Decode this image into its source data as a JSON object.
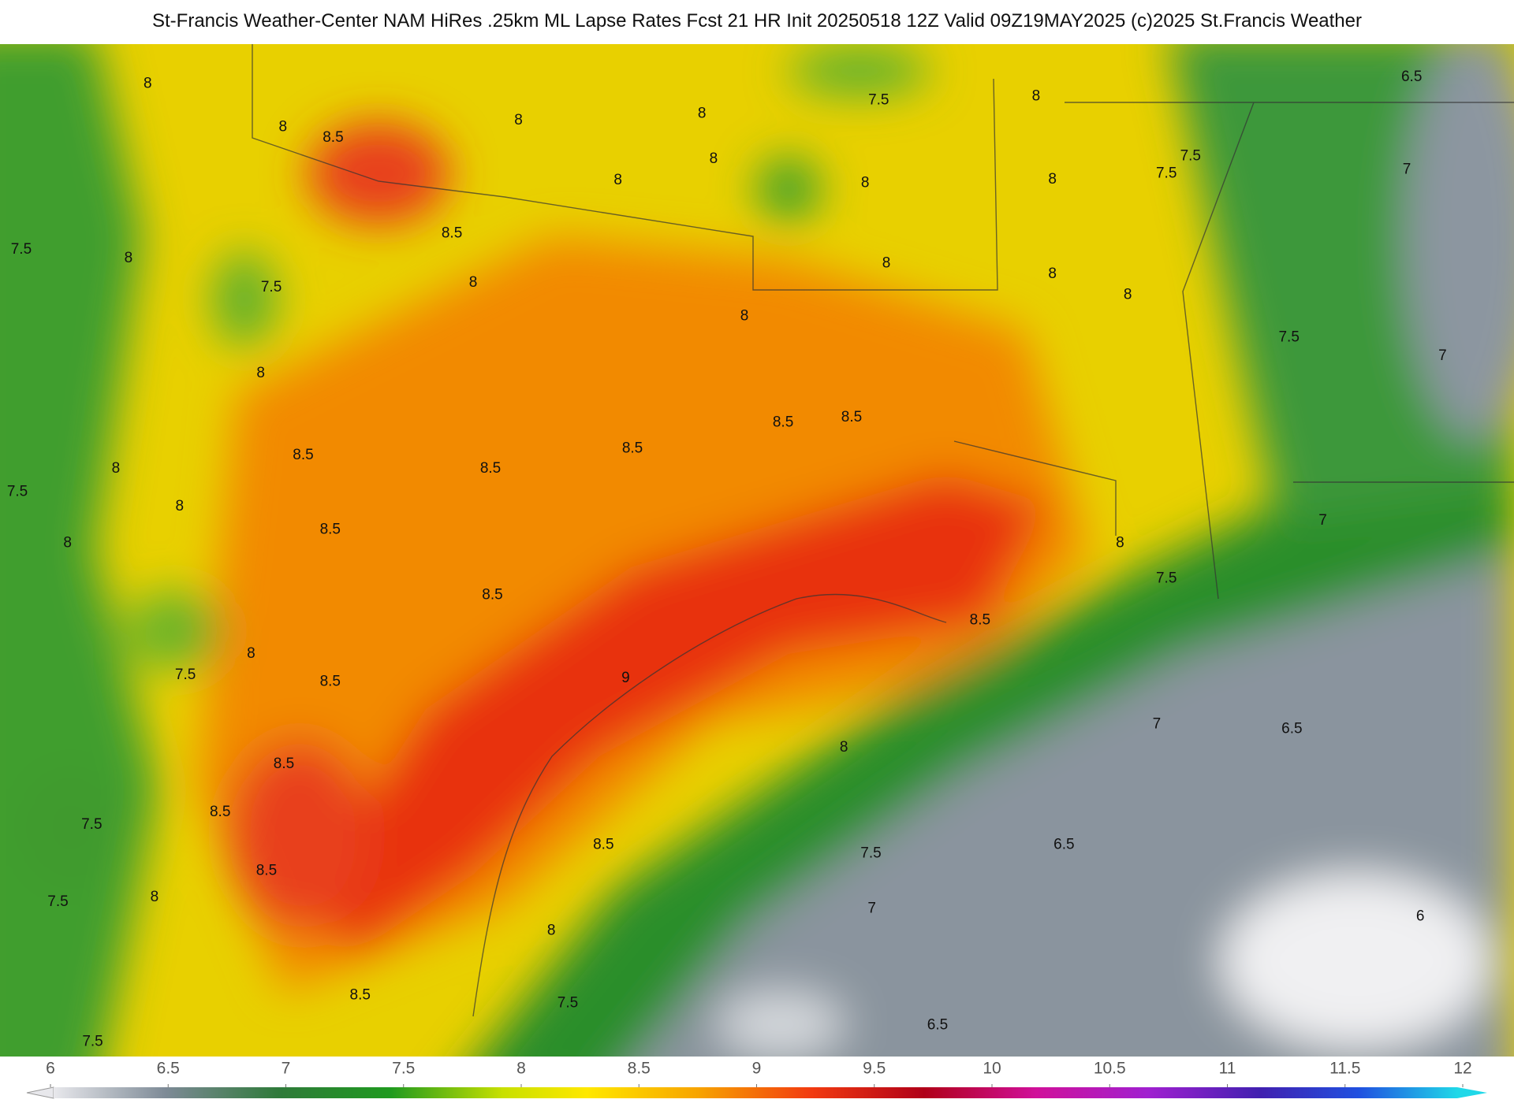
{
  "title": "St-Francis Weather-Center NAM HiRes .25km ML Lapse Rates  Fcst 21 HR Init 20250518 12Z  Valid 09Z19MAY2025    (c)2025 St.Francis Weather",
  "contour_labels": [
    8,
    8,
    8.5,
    8.5,
    8,
    8,
    8,
    8,
    8,
    7.5,
    8,
    6.5,
    7.5,
    7.5,
    7,
    8,
    8,
    7.5,
    8,
    7.5,
    8,
    8,
    8,
    8,
    7.5,
    7,
    8,
    8.5,
    8.5,
    8.5,
    8.5,
    8.5,
    8,
    7.5,
    8,
    8.5,
    7,
    8,
    8,
    7.5,
    8.5,
    8.5,
    8,
    7.5,
    8.5,
    9,
    6.5,
    7,
    8,
    8.5,
    8.5,
    7.5,
    8.5,
    6.5,
    7.5,
    8.5,
    8,
    7.5,
    7,
    6,
    8,
    8.5,
    7.5,
    6.5,
    7.5
  ],
  "colorbar": {
    "ticks": [
      6,
      6.5,
      7,
      7.5,
      8,
      8.5,
      9,
      9.5,
      10,
      10.5,
      11,
      11.5,
      12
    ]
  }
}
